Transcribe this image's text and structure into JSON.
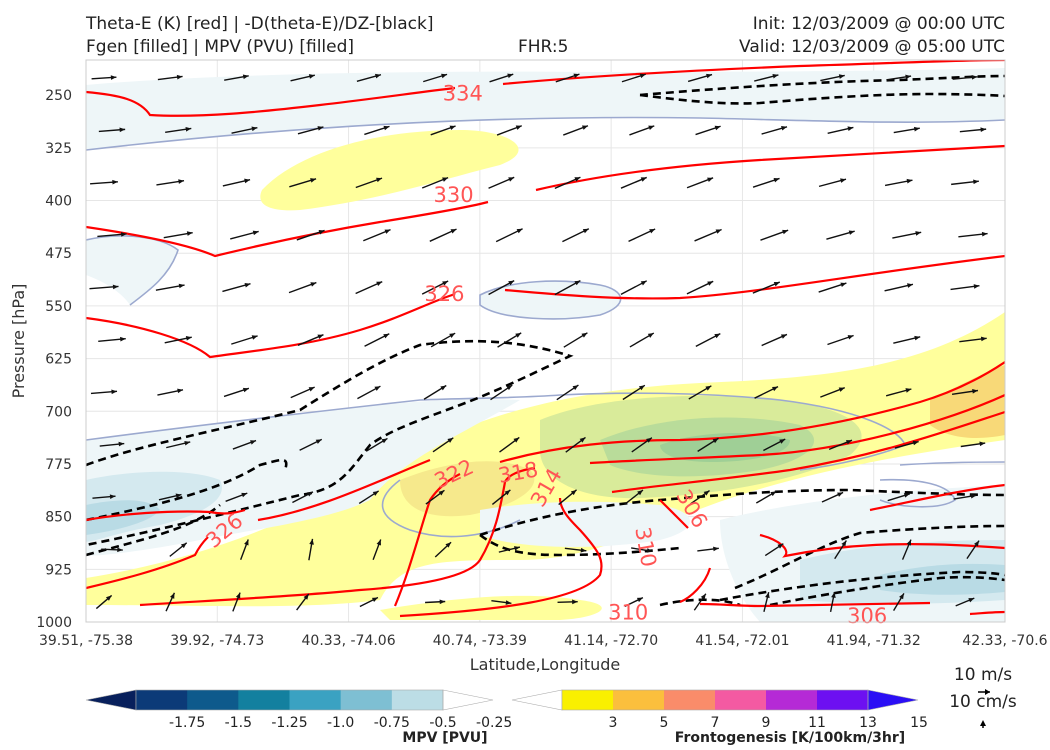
{
  "header": {
    "title_left_1": "Theta-E (K) [red] | -D(theta-E)/DZ-[black]",
    "title_left_2": "Fgen [filled] | MPV (PVU) [filled]",
    "title_center": "FHR:5",
    "title_right_1": "Init: 12/03/2009 @ 00:00 UTC",
    "title_right_2": "Valid: 12/03/2009 @ 05:00 UTC"
  },
  "chart_data": {
    "type": "cross-section",
    "xlabel": "Latitude,Longitude",
    "ylabel": "Pressure [hPa]",
    "x_ticks": [
      "39.51, -75.38",
      "39.92, -74.73",
      "40.33, -74.06",
      "40.74, -73.39",
      "41.14, -72.70",
      "41.54, -72.01",
      "41.94, -71.32",
      "42.33, -70.6"
    ],
    "y_ticks": [
      250,
      325,
      400,
      475,
      550,
      625,
      700,
      775,
      850,
      925,
      1000
    ],
    "ylim": [
      1000,
      200
    ],
    "y_scale": "linear, inverted",
    "grid": true,
    "theta_e_contour_labels": [
      {
        "text": "334",
        "x": 0.41,
        "p": 246
      },
      {
        "text": "330",
        "x": 0.4,
        "p": 391
      },
      {
        "text": "326",
        "x": 0.39,
        "p": 532
      },
      {
        "text": "322",
        "x": 0.4,
        "p": 788,
        "rot": -25
      },
      {
        "text": "318",
        "x": 0.47,
        "p": 786,
        "rot": -10
      },
      {
        "text": "314",
        "x": 0.5,
        "p": 808,
        "rot": -60
      },
      {
        "text": "306",
        "x": 0.66,
        "p": 838,
        "rot": 60
      },
      {
        "text": "310",
        "x": 0.61,
        "p": 893,
        "rot": 80
      },
      {
        "text": "310",
        "x": 0.59,
        "p": 985,
        "rot": 0
      },
      {
        "text": "326",
        "x": 0.15,
        "p": 869,
        "rot": -40
      },
      {
        "text": "306",
        "x": 0.85,
        "p": 990,
        "rot": 0
      }
    ],
    "mpv_colorbar": {
      "title": "MPV [PVU]",
      "levels": [
        "-1.75",
        "-1.5",
        "-1.25",
        "-1.0",
        "-0.75",
        "-0.5",
        "-0.25"
      ],
      "colors": [
        "#08205c",
        "#0c3a78",
        "#0e5a8c",
        "#13809f",
        "#3aa2c2",
        "#7ebfd3",
        "#bcdde6",
        "#ffffff"
      ]
    },
    "fgen_colorbar": {
      "title": "Frontogenesis [K/100km/3hr]",
      "levels": [
        "3",
        "5",
        "7",
        "9",
        "11",
        "13",
        "15"
      ],
      "colors": [
        "#ffffff",
        "#f9f000",
        "#fbbf3d",
        "#fa8c6a",
        "#f45aa2",
        "#b52ad6",
        "#6d10f1",
        "#2b0ff5"
      ]
    },
    "quiver_key": {
      "label_1": "10 m/s",
      "label_2": "10 cm/s"
    },
    "colors": {
      "theta_e": "#ff0000",
      "dthetae_dz": "#000000",
      "mpv_light": "#eef6f8",
      "fgen_light": "#ffff9c"
    }
  }
}
